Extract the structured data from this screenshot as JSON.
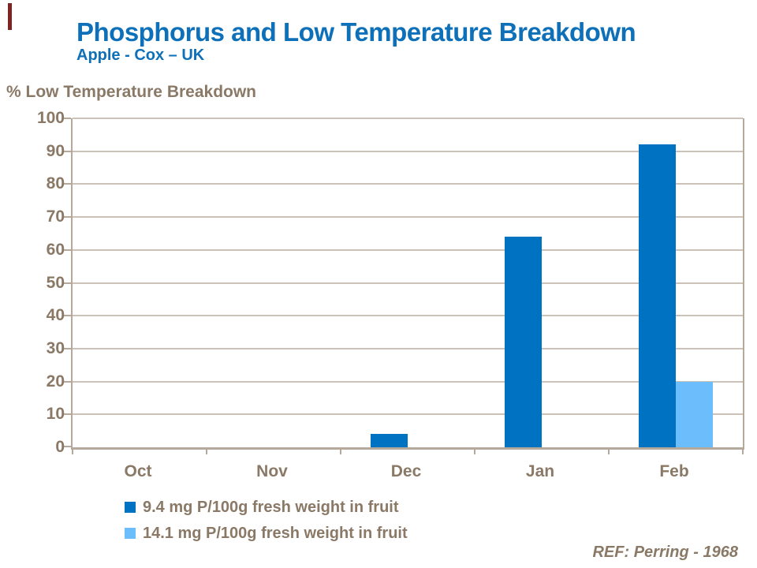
{
  "slide": {
    "title": "Phosphorus and Low Temperature Breakdown",
    "subtitle": "Apple - Cox – UK",
    "reference": "REF: Perring - 1968"
  },
  "colors": {
    "title_blue": "#0E70B8",
    "text_brown": "#8A7966",
    "gridline": "#CCC2B7",
    "axis": "#B5A99B",
    "accent_red": "#7E2423",
    "series1": "#0072C2",
    "series2": "#6CBDFB"
  },
  "chart_data": {
    "type": "bar",
    "title": "% Low Temperature Breakdown",
    "categories": [
      "Oct",
      "Nov",
      "Dec",
      "Jan",
      "Feb"
    ],
    "series": [
      {
        "name": "9.4 mg P/100g fresh weight in fruit",
        "color": "#0072C2",
        "values": [
          0,
          0,
          4,
          64,
          92
        ]
      },
      {
        "name": "14.1 mg P/100g fresh weight in fruit",
        "color": "#6CBDFB",
        "values": [
          0,
          0,
          0,
          0,
          20
        ]
      }
    ],
    "ylim": [
      0,
      100
    ],
    "ytick_interval": 10,
    "grid": true,
    "legend_position": "bottom-left"
  }
}
